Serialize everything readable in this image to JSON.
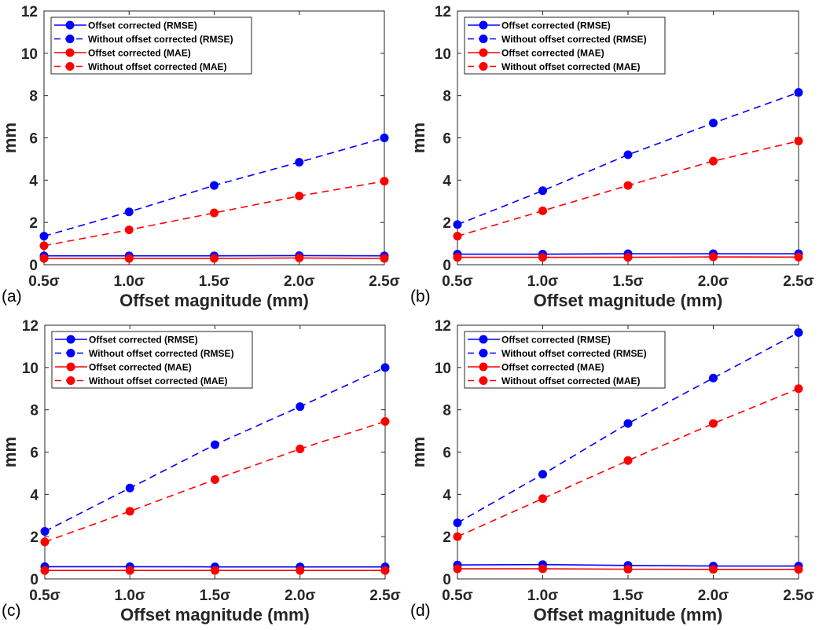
{
  "chart_data": [
    {
      "type": "line",
      "panel_label": "(a)",
      "xlabel": "Offset magnitude (mm)",
      "ylabel": "mm",
      "categories": [
        "0.5σ",
        "1.0σ",
        "1.5σ",
        "2.0σ",
        "2.5σ"
      ],
      "ylim": [
        0,
        12
      ],
      "yticks": [
        "0",
        "2",
        "4",
        "6",
        "8",
        "10",
        "12"
      ],
      "legend_position": "top-left",
      "grid": false,
      "series": [
        {
          "name": "Offset corrected (RMSE)",
          "color": "#0000ff",
          "style": "solid",
          "values": [
            0.42,
            0.42,
            0.42,
            0.43,
            0.42
          ]
        },
        {
          "name": "Without offset corrected (RMSE)",
          "color": "#0000ff",
          "style": "dashed",
          "values": [
            1.35,
            2.5,
            3.75,
            4.85,
            6.0
          ]
        },
        {
          "name": "Offset corrected (MAE)",
          "color": "#ff0000",
          "style": "solid",
          "values": [
            0.3,
            0.3,
            0.3,
            0.32,
            0.3
          ]
        },
        {
          "name": "Without offset corrected (MAE)",
          "color": "#ff0000",
          "style": "dashed",
          "values": [
            0.9,
            1.65,
            2.45,
            3.25,
            3.95
          ]
        }
      ]
    },
    {
      "type": "line",
      "panel_label": "(b)",
      "xlabel": "Offset magnitude (mm)",
      "ylabel": "mm",
      "categories": [
        "0.5σ",
        "1.0σ",
        "1.5σ",
        "2.0σ",
        "2.5σ"
      ],
      "ylim": [
        0,
        12
      ],
      "yticks": [
        "0",
        "2",
        "4",
        "6",
        "8",
        "10",
        "12"
      ],
      "legend_position": "top-left",
      "grid": false,
      "series": [
        {
          "name": "Offset corrected (RMSE)",
          "color": "#0000ff",
          "style": "solid",
          "values": [
            0.5,
            0.5,
            0.52,
            0.52,
            0.52
          ]
        },
        {
          "name": "Without offset corrected (RMSE)",
          "color": "#0000ff",
          "style": "dashed",
          "values": [
            1.9,
            3.5,
            5.2,
            6.7,
            8.15
          ]
        },
        {
          "name": "Offset corrected (MAE)",
          "color": "#ff0000",
          "style": "solid",
          "values": [
            0.35,
            0.35,
            0.35,
            0.37,
            0.36
          ]
        },
        {
          "name": "Without offset corrected (MAE)",
          "color": "#ff0000",
          "style": "dashed",
          "values": [
            1.35,
            2.55,
            3.75,
            4.9,
            5.85
          ]
        }
      ]
    },
    {
      "type": "line",
      "panel_label": "(c)",
      "xlabel": "Offset magnitude (mm)",
      "ylabel": "mm",
      "categories": [
        "0.5σ",
        "1.0σ",
        "1.5σ",
        "2.0σ",
        "2.5σ"
      ],
      "ylim": [
        0,
        12
      ],
      "yticks": [
        "0",
        "2",
        "4",
        "6",
        "8",
        "10",
        "12"
      ],
      "legend_position": "top-left",
      "grid": false,
      "series": [
        {
          "name": "Offset corrected (RMSE)",
          "color": "#0000ff",
          "style": "solid",
          "values": [
            0.58,
            0.58,
            0.57,
            0.57,
            0.57
          ]
        },
        {
          "name": "Without offset corrected (RMSE)",
          "color": "#0000ff",
          "style": "dashed",
          "values": [
            2.25,
            4.3,
            6.35,
            8.15,
            10.0
          ]
        },
        {
          "name": "Offset corrected (MAE)",
          "color": "#ff0000",
          "style": "solid",
          "values": [
            0.4,
            0.4,
            0.4,
            0.4,
            0.4
          ]
        },
        {
          "name": "Without offset corrected (MAE)",
          "color": "#ff0000",
          "style": "dashed",
          "values": [
            1.75,
            3.2,
            4.7,
            6.15,
            7.45
          ]
        }
      ]
    },
    {
      "type": "line",
      "panel_label": "(d)",
      "xlabel": "Offset magnitude (mm)",
      "ylabel": "mm",
      "categories": [
        "0.5σ",
        "1.0σ",
        "1.5σ",
        "2.0σ",
        "2.5σ"
      ],
      "ylim": [
        0,
        12
      ],
      "yticks": [
        "0",
        "2",
        "4",
        "6",
        "8",
        "10",
        "12"
      ],
      "legend_position": "top-left",
      "grid": false,
      "series": [
        {
          "name": "Offset corrected (RMSE)",
          "color": "#0000ff",
          "style": "solid",
          "values": [
            0.66,
            0.68,
            0.64,
            0.61,
            0.61
          ]
        },
        {
          "name": "Without offset corrected (RMSE)",
          "color": "#0000ff",
          "style": "dashed",
          "values": [
            2.65,
            4.95,
            7.35,
            9.5,
            11.65
          ]
        },
        {
          "name": "Offset corrected (MAE)",
          "color": "#ff0000",
          "style": "solid",
          "values": [
            0.48,
            0.48,
            0.46,
            0.45,
            0.45
          ]
        },
        {
          "name": "Without offset corrected (MAE)",
          "color": "#ff0000",
          "style": "dashed",
          "values": [
            2.0,
            3.8,
            5.6,
            7.35,
            9.0
          ]
        }
      ]
    }
  ]
}
